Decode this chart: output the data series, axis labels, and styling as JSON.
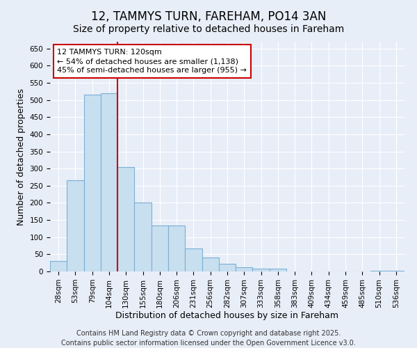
{
  "title": "12, TAMMYS TURN, FAREHAM, PO14 3AN",
  "subtitle": "Size of property relative to detached houses in Fareham",
  "xlabel": "Distribution of detached houses by size in Fareham",
  "ylabel": "Number of detached properties",
  "categories": [
    "28sqm",
    "53sqm",
    "79sqm",
    "104sqm",
    "130sqm",
    "155sqm",
    "180sqm",
    "206sqm",
    "231sqm",
    "256sqm",
    "282sqm",
    "307sqm",
    "333sqm",
    "358sqm",
    "383sqm",
    "409sqm",
    "434sqm",
    "459sqm",
    "485sqm",
    "510sqm",
    "536sqm"
  ],
  "values": [
    30,
    265,
    515,
    520,
    305,
    200,
    133,
    133,
    67,
    40,
    22,
    13,
    8,
    8,
    0,
    0,
    0,
    0,
    0,
    3,
    3
  ],
  "bar_color": "#c8dff0",
  "bar_edge_color": "#7aafd4",
  "vline_color": "#cc0000",
  "vline_x": 4.5,
  "annotation_text": "12 TAMMYS TURN: 120sqm\n← 54% of detached houses are smaller (1,138)\n45% of semi-detached houses are larger (955) →",
  "annotation_box_facecolor": "#ffffff",
  "annotation_box_edgecolor": "#cc0000",
  "ylim": [
    0,
    670
  ],
  "yticks": [
    0,
    50,
    100,
    150,
    200,
    250,
    300,
    350,
    400,
    450,
    500,
    550,
    600,
    650
  ],
  "background_color": "#e8eef8",
  "grid_color": "#ffffff",
  "footer_line1": "Contains HM Land Registry data © Crown copyright and database right 2025.",
  "footer_line2": "Contains public sector information licensed under the Open Government Licence v3.0.",
  "title_fontsize": 12,
  "subtitle_fontsize": 10,
  "axis_label_fontsize": 9,
  "tick_fontsize": 7.5,
  "annotation_fontsize": 8,
  "footer_fontsize": 7
}
